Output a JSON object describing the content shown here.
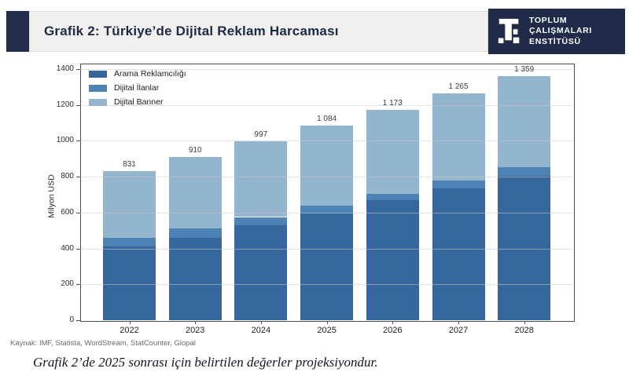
{
  "header": {
    "title": "Grafik 2: Türkiye’de Dijital Reklam Harcaması",
    "logo": {
      "line1": "TOPLUM",
      "line2": "ÇALIŞMALARI",
      "line3": "ENSTİTÜSÜ"
    }
  },
  "chart_data": {
    "type": "bar",
    "stacked": true,
    "categories": [
      "2022",
      "2023",
      "2024",
      "2025",
      "2026",
      "2027",
      "2028"
    ],
    "series": [
      {
        "name": "Arama Reklamcılığı",
        "color": "#35679e",
        "values": [
          410,
          460,
          530,
          595,
          670,
          735,
          805
        ]
      },
      {
        "name": "Dijital İlanlar",
        "color": "#4d82b4",
        "values": [
          50,
          50,
          45,
          45,
          35,
          45,
          48
        ]
      },
      {
        "name": "Dijital Banner",
        "color": "#93b5ce",
        "values": [
          371,
          400,
          422,
          444,
          468,
          485,
          506
        ]
      }
    ],
    "totals": [
      831,
      910,
      997,
      1084,
      1173,
      1265,
      1359
    ],
    "total_labels": [
      "831",
      "910",
      "997",
      "1 084",
      "1 173",
      "1 265",
      "1 359"
    ],
    "ylabel": "Milyon USD",
    "xlabel": "",
    "ylim": [
      0,
      1430
    ],
    "yticks": [
      0,
      200,
      400,
      600,
      800,
      1000,
      1200,
      1400
    ],
    "grid": true,
    "legend_position": "upper-left"
  },
  "footer": {
    "source": "Kaynak: IMF, Statista, WordStream, StatCounter, Glopal",
    "caption": "Grafik 2’de 2025 sonrası için belirtilen değerler projeksiyondur."
  },
  "colors": {
    "navy": "#1f2b49",
    "header_bar_bg": "#f1f0ef",
    "title_text": "#1e2947",
    "plot_frame": "#4f4f4f"
  }
}
